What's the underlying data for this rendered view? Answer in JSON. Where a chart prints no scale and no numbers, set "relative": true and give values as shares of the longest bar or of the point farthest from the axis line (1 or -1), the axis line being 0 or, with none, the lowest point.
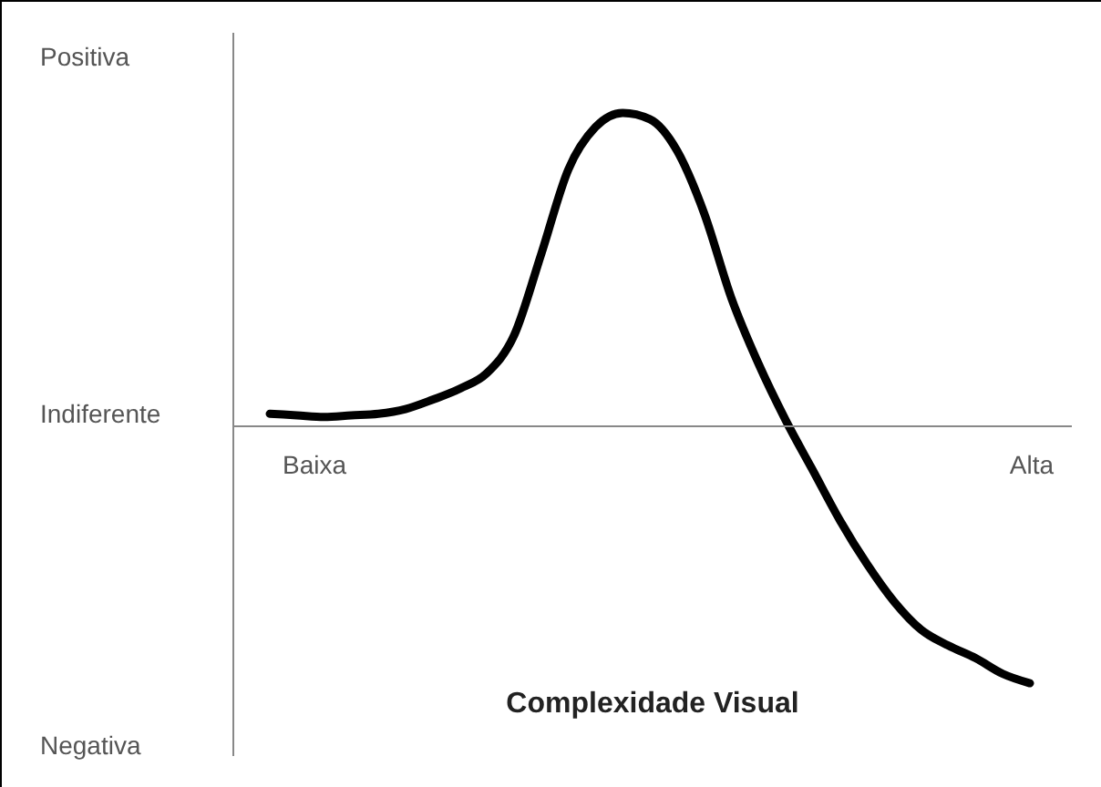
{
  "chart_data": {
    "type": "line",
    "relative": true,
    "xlabel": "Complexidade Visual",
    "annotations": [
      "Positiva",
      "Indiferente",
      "Negativa",
      "Baixa",
      "Alta"
    ],
    "categories": [
      null,
      null,
      null,
      null,
      null,
      null,
      null,
      null,
      null,
      null,
      null,
      null,
      null,
      null,
      null,
      null,
      null,
      null,
      null,
      null,
      null,
      null,
      null,
      null,
      null,
      null,
      null,
      null,
      null
    ],
    "series": [
      {
        "color": "#000000",
        "values": [
          0.04,
          0.035,
          0.03,
          0.035,
          0.04,
          0.055,
          0.085,
          0.12,
          0.17,
          0.29,
          0.55,
          0.82,
          0.955,
          1.0,
          0.98,
          0.88,
          0.68,
          0.41,
          0.2,
          0.02,
          -0.14,
          -0.3,
          -0.44,
          -0.56,
          -0.65,
          -0.7,
          -0.74,
          -0.79,
          -0.82
        ]
      }
    ]
  }
}
